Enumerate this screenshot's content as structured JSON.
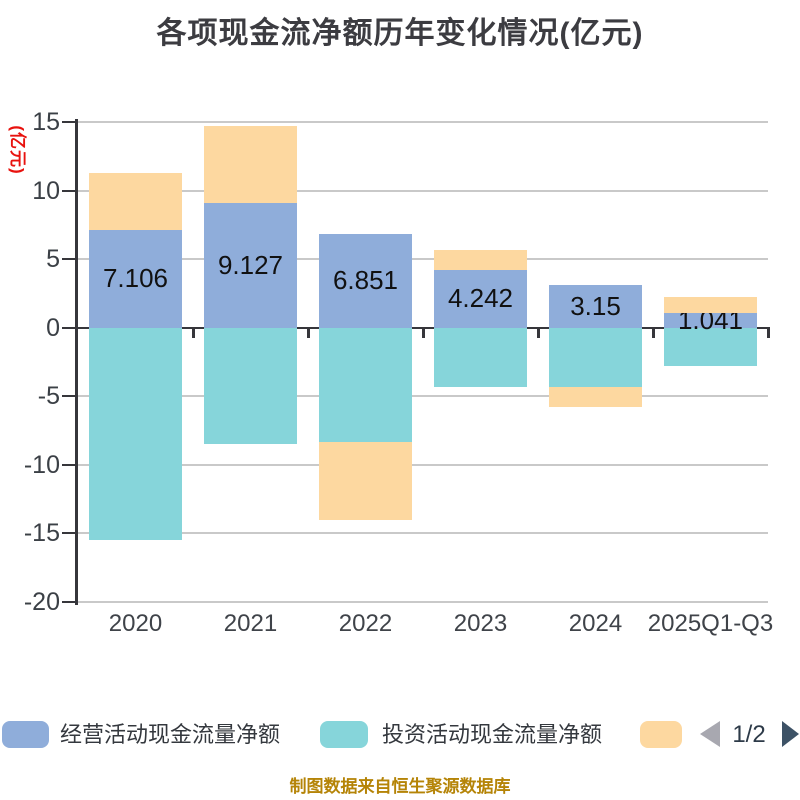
{
  "title": {
    "text": "各项现金流净额历年变化情况(亿元)"
  },
  "y_axis": {
    "unit_label": "(亿元)",
    "ticks": [
      "15",
      "10",
      "5",
      "0",
      "-5",
      "-10",
      "-15",
      "-20"
    ]
  },
  "x_axis": {
    "labels": [
      "2020",
      "2021",
      "2022",
      "2023",
      "2024",
      "2025Q1-Q3"
    ]
  },
  "chart_data": {
    "type": "bar",
    "stacked": true,
    "categories": [
      "2020",
      "2021",
      "2022",
      "2023",
      "2024",
      "2025Q1-Q3"
    ],
    "ylim": [
      -20,
      15
    ],
    "grid": true,
    "legend_position": "bottom",
    "series": [
      {
        "name": "经营活动现金流量净额",
        "color": "#8fadda",
        "values": [
          7.106,
          9.127,
          6.851,
          4.242,
          3.15,
          1.041
        ]
      },
      {
        "name": "投资活动现金流量净额",
        "color": "#86d5da",
        "values": [
          -15.5,
          -8.45,
          -8.3,
          -4.35,
          -4.31,
          -2.8
        ]
      },
      {
        "name": "",
        "color": "#fdd8a0",
        "values": [
          4.2,
          5.55,
          -5.7,
          1.45,
          -1.45,
          1.2
        ]
      }
    ],
    "bar_labels": [
      "7.106",
      "9.127",
      "6.851",
      "4.242",
      "3.15",
      "1.041"
    ]
  },
  "legend": {
    "items": [
      {
        "label": "经营活动现金流量净额",
        "color": "#8fadda"
      },
      {
        "label": "投资活动现金流量净额",
        "color": "#86d5da"
      },
      {
        "label": "",
        "color": "#fdd8a0"
      }
    ],
    "pagination": {
      "text": "1/2"
    }
  },
  "footer": {
    "source_text": "制图数据来自恒生聚源数据库"
  },
  "colors": {
    "grid": "#c9c9c9",
    "axis": "#36363b",
    "title": "#3c3c41",
    "tick_label": "#3b4046",
    "unit_label": "#e8120e",
    "bar_label": "#111111",
    "x_label": "#3f4349",
    "legend_label": "#34383e",
    "source": "#b58407",
    "pager_text": "#2d3a48"
  }
}
